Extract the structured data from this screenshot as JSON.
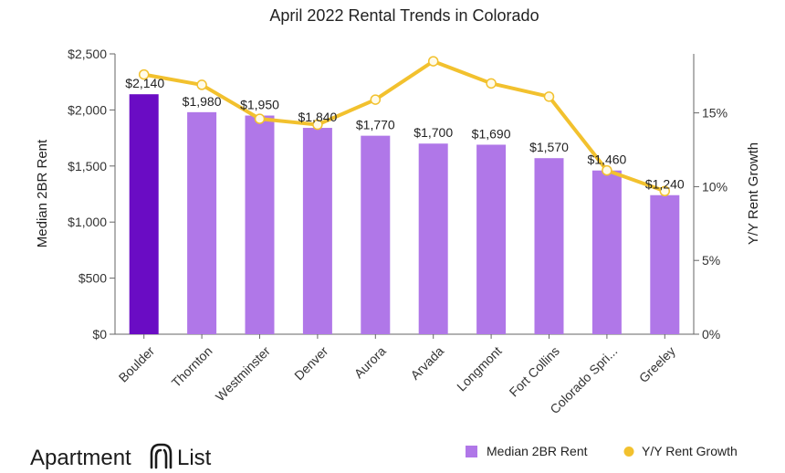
{
  "chart_data": {
    "type": "bar",
    "title": "April 2022 Rental Trends in Colorado",
    "xlabel": "",
    "ylabel": "Median 2BR Rent",
    "y2label": "Y/Y Rent Growth",
    "categories": [
      "Boulder",
      "Thornton",
      "Westminster",
      "Denver",
      "Aurora",
      "Arvada",
      "Longmont",
      "Fort Collins",
      "Colorado Spri...",
      "Greeley"
    ],
    "ylim": [
      0,
      2500
    ],
    "y2lim": [
      0,
      19
    ],
    "yticks": [
      "$0",
      "$500",
      "$1,000",
      "$1,500",
      "$2,000",
      "$2,500"
    ],
    "y2ticks": [
      "0%",
      "5%",
      "10%",
      "15%"
    ],
    "series": [
      {
        "name": "Median 2BR Rent",
        "type": "bar",
        "values": [
          2140,
          1980,
          1950,
          1840,
          1770,
          1700,
          1690,
          1570,
          1460,
          1240
        ],
        "labels": [
          "$2,140",
          "$1,980",
          "$1,950",
          "$1,840",
          "$1,770",
          "$1,700",
          "$1,690",
          "$1,570",
          "$1,460",
          "$1,240"
        ],
        "color": "#b077e8",
        "highlight_color": "#6a0cc4",
        "highlight_index": 0
      },
      {
        "name": "Y/Y Rent Growth",
        "type": "line",
        "axis": "right",
        "values": [
          17.6,
          16.9,
          14.6,
          14.2,
          15.9,
          18.5,
          17.0,
          16.1,
          11.1,
          9.7
        ],
        "color": "#f2c12e"
      }
    ],
    "grid": false,
    "legend": "bottom-right"
  },
  "brand": {
    "name_a": "Apartment",
    "name_b": "List"
  }
}
